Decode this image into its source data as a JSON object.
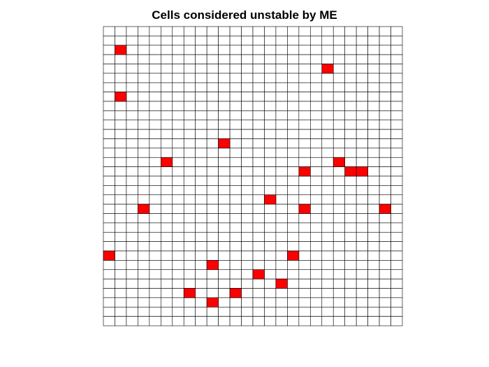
{
  "chart_data": {
    "type": "heatmap",
    "title": "Cells considered unstable by ME",
    "xlabel": "",
    "ylabel": "",
    "columns": 26,
    "rows": 32,
    "row_order": "top-to-bottom",
    "grid": true,
    "cell_color": "#ffffff",
    "grid_color": "#000000",
    "highlight_color": "#ff0000",
    "unstable_cells": [
      {
        "row": 2,
        "col": 1
      },
      {
        "row": 4,
        "col": 19
      },
      {
        "row": 7,
        "col": 1
      },
      {
        "row": 12,
        "col": 10
      },
      {
        "row": 14,
        "col": 5
      },
      {
        "row": 14,
        "col": 20
      },
      {
        "row": 15,
        "col": 17
      },
      {
        "row": 15,
        "col": 21
      },
      {
        "row": 15,
        "col": 22
      },
      {
        "row": 18,
        "col": 14
      },
      {
        "row": 19,
        "col": 3
      },
      {
        "row": 19,
        "col": 17
      },
      {
        "row": 19,
        "col": 24
      },
      {
        "row": 24,
        "col": 0
      },
      {
        "row": 24,
        "col": 16
      },
      {
        "row": 25,
        "col": 9
      },
      {
        "row": 26,
        "col": 13
      },
      {
        "row": 27,
        "col": 15
      },
      {
        "row": 28,
        "col": 7
      },
      {
        "row": 28,
        "col": 11
      },
      {
        "row": 29,
        "col": 9
      }
    ]
  }
}
